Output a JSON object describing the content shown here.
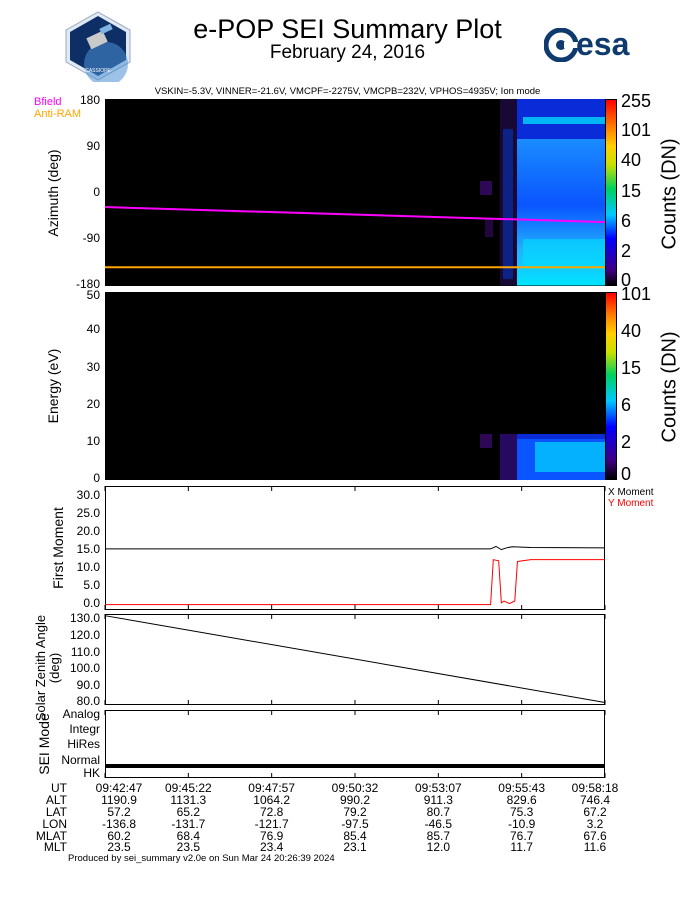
{
  "header": {
    "title": "e-POP SEI Summary Plot",
    "subtitle": "February 24, 2016",
    "params": "VSKIN=-5.3V, VINNER=-21.6V, VMCPF=-2275V, VMCPB=232V, VPHOS=4935V; Ion mode",
    "esa_logo_text": "esa",
    "mission_logo_text": "CASSIOPE"
  },
  "footer": "Produced by sei_summary v2.0e on Sun Mar 24 20:26:39 2024",
  "colors": {
    "bfield": "#ff00ff",
    "antiram": "#ffa500",
    "x_moment": "#000000",
    "y_moment": "#ff0000"
  },
  "chart_data": [
    {
      "type": "heatmap",
      "name": "azimuth",
      "ylabel": "Azimuth (deg)",
      "ylim": [
        -180,
        180
      ],
      "yticks": [
        "180",
        "90",
        "0",
        "-90",
        "-180"
      ],
      "colorbar_label": "Counts (DN)",
      "colorbar_ticks": [
        "255",
        "101",
        "40",
        "15",
        "6",
        "2",
        "0"
      ],
      "legend": [
        "Bfield",
        "Anti-RAM"
      ],
      "series": [
        {
          "name": "Bfield",
          "x": [
            "09:42:47",
            "09:58:18"
          ],
          "y": [
            -28,
            -57
          ]
        },
        {
          "name": "Anti-RAM",
          "x": [
            "09:42:47",
            "09:58:18"
          ],
          "y": [
            -144,
            -144
          ]
        }
      ],
      "grid": false
    },
    {
      "type": "heatmap",
      "name": "energy",
      "ylabel": "Energy (eV)",
      "ylim": [
        0,
        50
      ],
      "yticks": [
        "50",
        "40",
        "30",
        "20",
        "10",
        "0"
      ],
      "colorbar_label": "Counts (DN)",
      "colorbar_ticks": [
        "101",
        "40",
        "15",
        "6",
        "2",
        "0"
      ],
      "grid": false
    },
    {
      "type": "line",
      "name": "first_moment",
      "ylabel": "First Moment",
      "ylim": [
        -1.5,
        33
      ],
      "yticks": [
        "30.0",
        "25.0",
        "20.0",
        "15.0",
        "10.0",
        "5.0",
        "0.0"
      ],
      "legend": [
        "X Moment",
        "Y Moment"
      ],
      "series": [
        {
          "name": "X Moment",
          "x": [
            "09:42:47",
            "09:54:45",
            "09:54:55",
            "09:55:05",
            "09:55:15",
            "09:55:25",
            "09:56:00",
            "09:58:18"
          ],
          "y": [
            15.5,
            15.5,
            16.2,
            15.3,
            15.8,
            16.1,
            15.9,
            15.8
          ]
        },
        {
          "name": "Y Moment",
          "x": [
            "09:42:47",
            "09:54:45",
            "09:54:50",
            "09:55:00",
            "09:55:05",
            "09:55:10",
            "09:55:20",
            "09:55:30",
            "09:55:35",
            "09:56:00",
            "09:58:18"
          ],
          "y": [
            0.0,
            0.0,
            12.5,
            12.2,
            0.5,
            1.0,
            0.3,
            1.0,
            12.0,
            12.5,
            12.5
          ]
        }
      ],
      "grid": false
    },
    {
      "type": "line",
      "name": "solar_zenith",
      "ylabel": "Solar Zenith Angle (deg)",
      "ylim": [
        79,
        133
      ],
      "yticks": [
        "130.0",
        "120.0",
        "110.0",
        "100.0",
        "90.0",
        "80.0"
      ],
      "series": [
        {
          "x": [
            "09:42:47",
            "09:58:18"
          ],
          "y": [
            132,
            80.5
          ]
        }
      ],
      "grid": false
    },
    {
      "type": "line",
      "name": "sei_mode",
      "ylabel": "SEI Mode",
      "categories": [
        "Analog",
        "Integr",
        "HiRes",
        "Normal",
        "HK"
      ],
      "series": [
        {
          "x": [
            "09:42:47",
            "09:58:18"
          ],
          "y": [
            "Normal",
            "Normal"
          ]
        }
      ],
      "grid": false
    },
    {
      "type": "table",
      "name": "ephemeris",
      "rows": [
        "UT",
        "ALT",
        "LAT",
        "LON",
        "MLAT",
        "MLT"
      ],
      "columns": [
        [
          "09:42:47",
          "1190.9",
          "57.2",
          "-136.8",
          "60.2",
          "23.5"
        ],
        [
          "09:45:22",
          "1131.3",
          "65.2",
          "-131.7",
          "68.4",
          "23.5"
        ],
        [
          "09:47:57",
          "1064.2",
          "72.8",
          "-121.7",
          "76.9",
          "23.4"
        ],
        [
          "09:50:32",
          "990.2",
          "79.2",
          "-97.5",
          "85.4",
          "23.1"
        ],
        [
          "09:53:07",
          "911.3",
          "80.7",
          "-46.5",
          "85.7",
          "12.0"
        ],
        [
          "09:55:43",
          "829.6",
          "75.3",
          "-10.9",
          "76.7",
          "11.7"
        ],
        [
          "09:58:18",
          "746.4",
          "67.2",
          "3.2",
          "67.6",
          "11.6"
        ]
      ]
    }
  ]
}
